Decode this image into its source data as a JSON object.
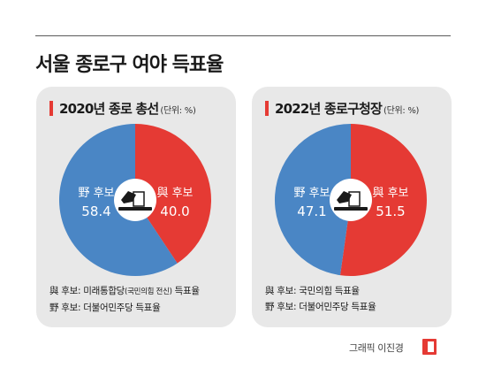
{
  "title": "서울 종로구 여야 득표율",
  "colors": {
    "ruling": "#e53a34",
    "opposition": "#4a86c5",
    "panel_bg": "#e8e8e8",
    "accent": "#e53a34"
  },
  "chart_data": [
    {
      "type": "pie",
      "title": "2020년 종로 총선",
      "unit": "(단위: %)",
      "slices": [
        {
          "label": "與 후보",
          "value": 40.0,
          "display": "40.0"
        },
        {
          "label": "野 후보",
          "value": 58.4,
          "display": "58.4"
        }
      ],
      "notes": [
        {
          "prefix": "與 후보: 미래통합당",
          "small": "(국민의힘 전신)",
          "suffix": " 득표율"
        },
        {
          "prefix": "野 후보: 더불어민주당 득표율",
          "small": "",
          "suffix": ""
        }
      ]
    },
    {
      "type": "pie",
      "title": "2022년 종로구청장",
      "unit": "(단위: %)",
      "slices": [
        {
          "label": "與 후보",
          "value": 51.5,
          "display": "51.5"
        },
        {
          "label": "野 후보",
          "value": 47.1,
          "display": "47.1"
        }
      ],
      "notes": [
        {
          "prefix": "與 후보: 국민의힘 득표율",
          "small": "",
          "suffix": ""
        },
        {
          "prefix": "野 후보: 더불어민주당 득표율",
          "small": "",
          "suffix": ""
        }
      ]
    }
  ],
  "credit": "그래픽 이진경",
  "icon": "ballot-box-icon"
}
